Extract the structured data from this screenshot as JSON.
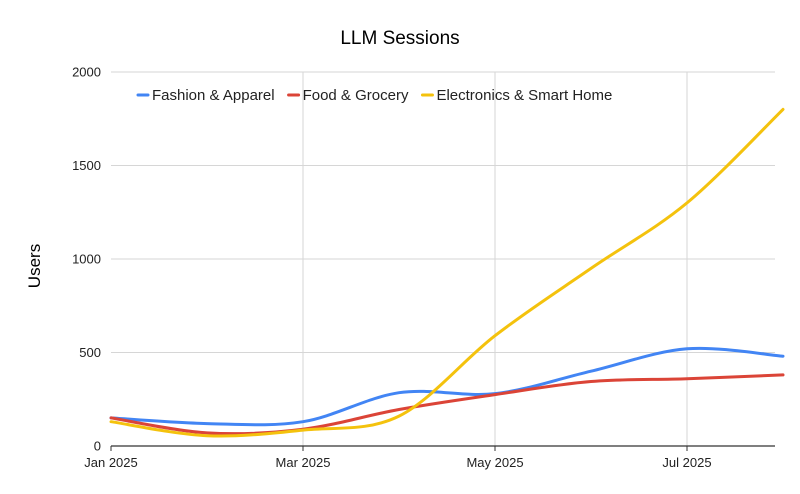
{
  "chart_data": {
    "type": "line",
    "title": "LLM Sessions",
    "xlabel": "",
    "ylabel": "Users",
    "x": [
      "2025-01",
      "2025-02",
      "2025-03",
      "2025-04",
      "2025-05",
      "2025-06",
      "2025-07",
      "2025-08"
    ],
    "x_tick_labels": [
      "Jan 2025",
      "Mar 2025",
      "May 2025",
      "Jul 2025"
    ],
    "x_tick_positions": [
      "2025-01",
      "2025-03",
      "2025-05",
      "2025-07"
    ],
    "ylim": [
      0,
      2000
    ],
    "y_ticks": [
      0,
      500,
      1000,
      1500,
      2000
    ],
    "grid": true,
    "legend_position": "top",
    "series": [
      {
        "name": "Fashion & Apparel",
        "color": "#4285f4",
        "values": [
          150,
          120,
          130,
          285,
          280,
          400,
          520,
          480
        ]
      },
      {
        "name": "Food & Grocery",
        "color": "#db4437",
        "values": [
          150,
          70,
          90,
          195,
          275,
          345,
          360,
          380
        ]
      },
      {
        "name": "Electronics & Smart Home",
        "color": "#f4c20d",
        "values": [
          130,
          55,
          85,
          160,
          590,
          950,
          1300,
          1800
        ]
      }
    ]
  }
}
